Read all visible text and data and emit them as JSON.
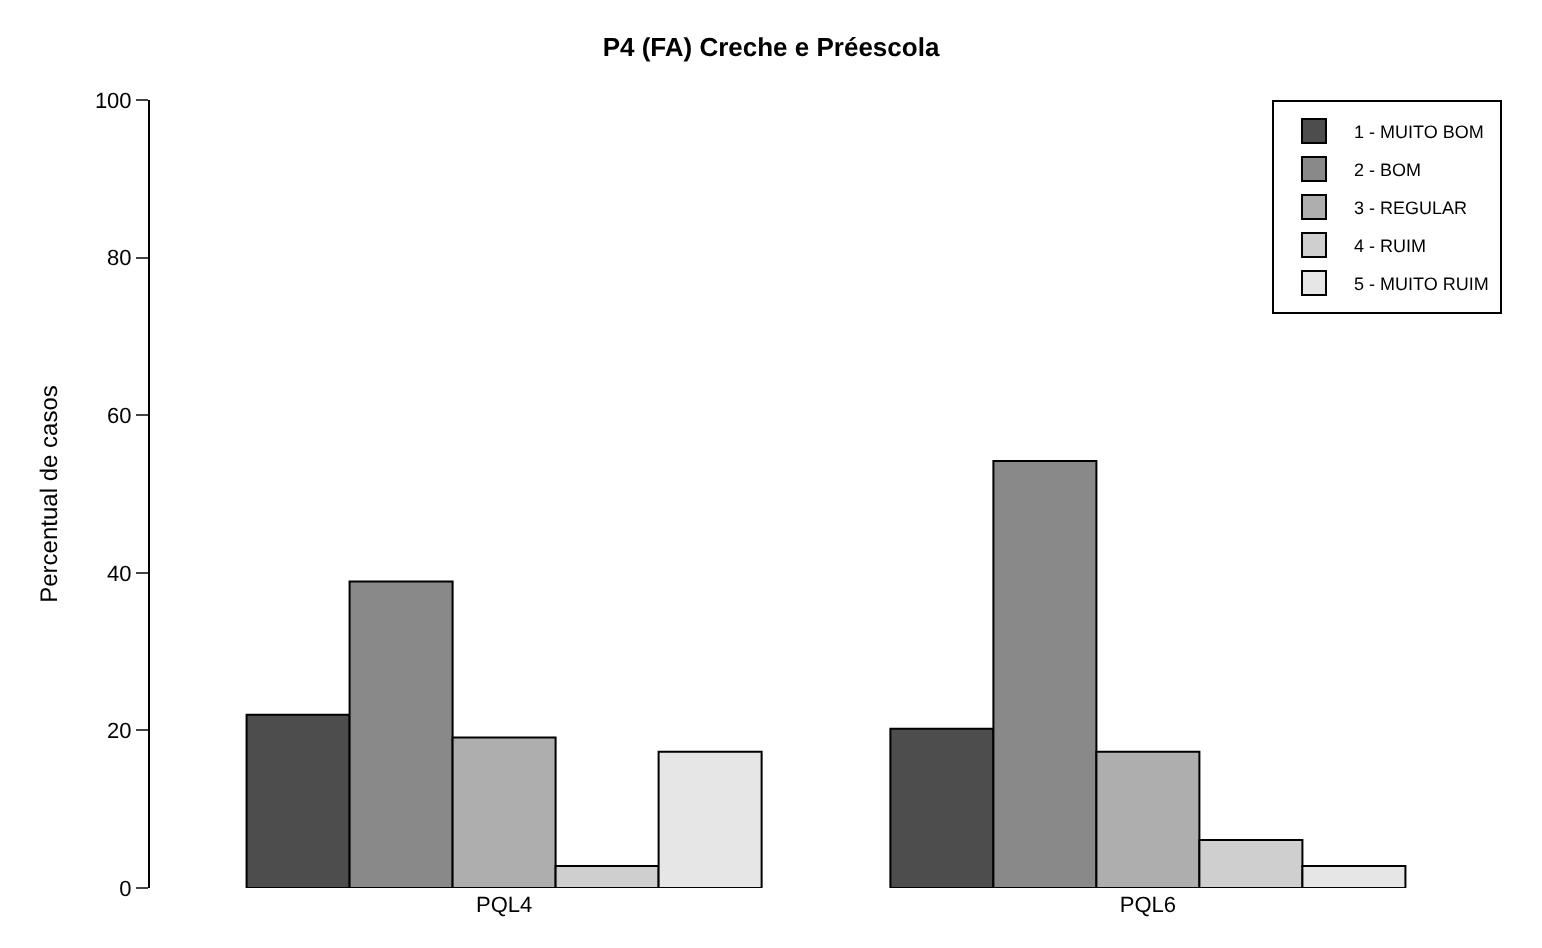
{
  "chart_data": {
    "type": "bar",
    "title": "P4 (FA) Creche e Préescola",
    "ylabel": "Percentual de casos",
    "categories": [
      "PQL4",
      "PQL6"
    ],
    "series": [
      {
        "name": "1 - MUITO BOM",
        "color": "#4d4d4d",
        "values": [
          22.0,
          20.2
        ]
      },
      {
        "name": "2 - BOM",
        "color": "#898989",
        "values": [
          38.9,
          54.2
        ]
      },
      {
        "name": "3 - REGULAR",
        "color": "#aeaeae",
        "values": [
          19.1,
          17.3
        ]
      },
      {
        "name": "4 - RUIM",
        "color": "#cfcfcf",
        "values": [
          2.8,
          6.1
        ]
      },
      {
        "name": "5 - MUITO RUIM",
        "color": "#e6e6e6",
        "values": [
          17.3,
          2.8
        ]
      }
    ],
    "ylim": [
      0,
      100
    ],
    "yticks": [
      0,
      20,
      40,
      60,
      80,
      100
    ],
    "legend": "top right"
  }
}
